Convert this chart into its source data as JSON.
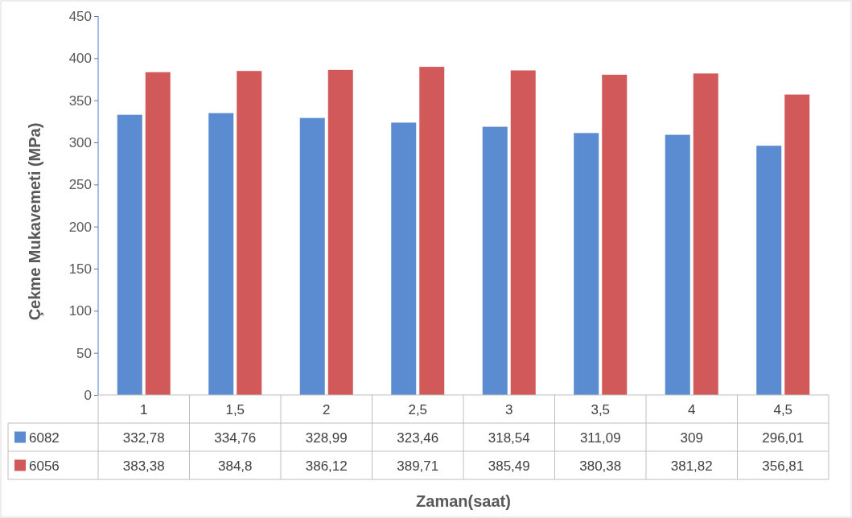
{
  "chart_data": {
    "type": "bar",
    "xlabel": "Zaman(saat)",
    "ylabel": "Çekme Mukavemeti (MPa)",
    "categories": [
      "1",
      "1,5",
      "2",
      "2,5",
      "3",
      "3,5",
      "4",
      "4,5"
    ],
    "series": [
      {
        "name": "6082",
        "color": "#5b8bd0",
        "values": [
          332.78,
          334.76,
          328.99,
          323.46,
          318.54,
          311.09,
          309,
          296.01
        ],
        "value_labels": [
          "332,78",
          "334,76",
          "328,99",
          "323,46",
          "318,54",
          "311,09",
          "309",
          "296,01"
        ]
      },
      {
        "name": "6056",
        "color": "#d2595a",
        "values": [
          383.38,
          384.8,
          386.12,
          389.71,
          385.49,
          380.38,
          381.82,
          356.81
        ],
        "value_labels": [
          "383,38",
          "384,8",
          "386,12",
          "389,71",
          "385,49",
          "380,38",
          "381,82",
          "356,81"
        ]
      }
    ],
    "ylim": [
      0,
      450
    ],
    "yticks": [
      0,
      50,
      100,
      150,
      200,
      250,
      300,
      350,
      400,
      450
    ],
    "grid": false,
    "legend": "bottom"
  }
}
